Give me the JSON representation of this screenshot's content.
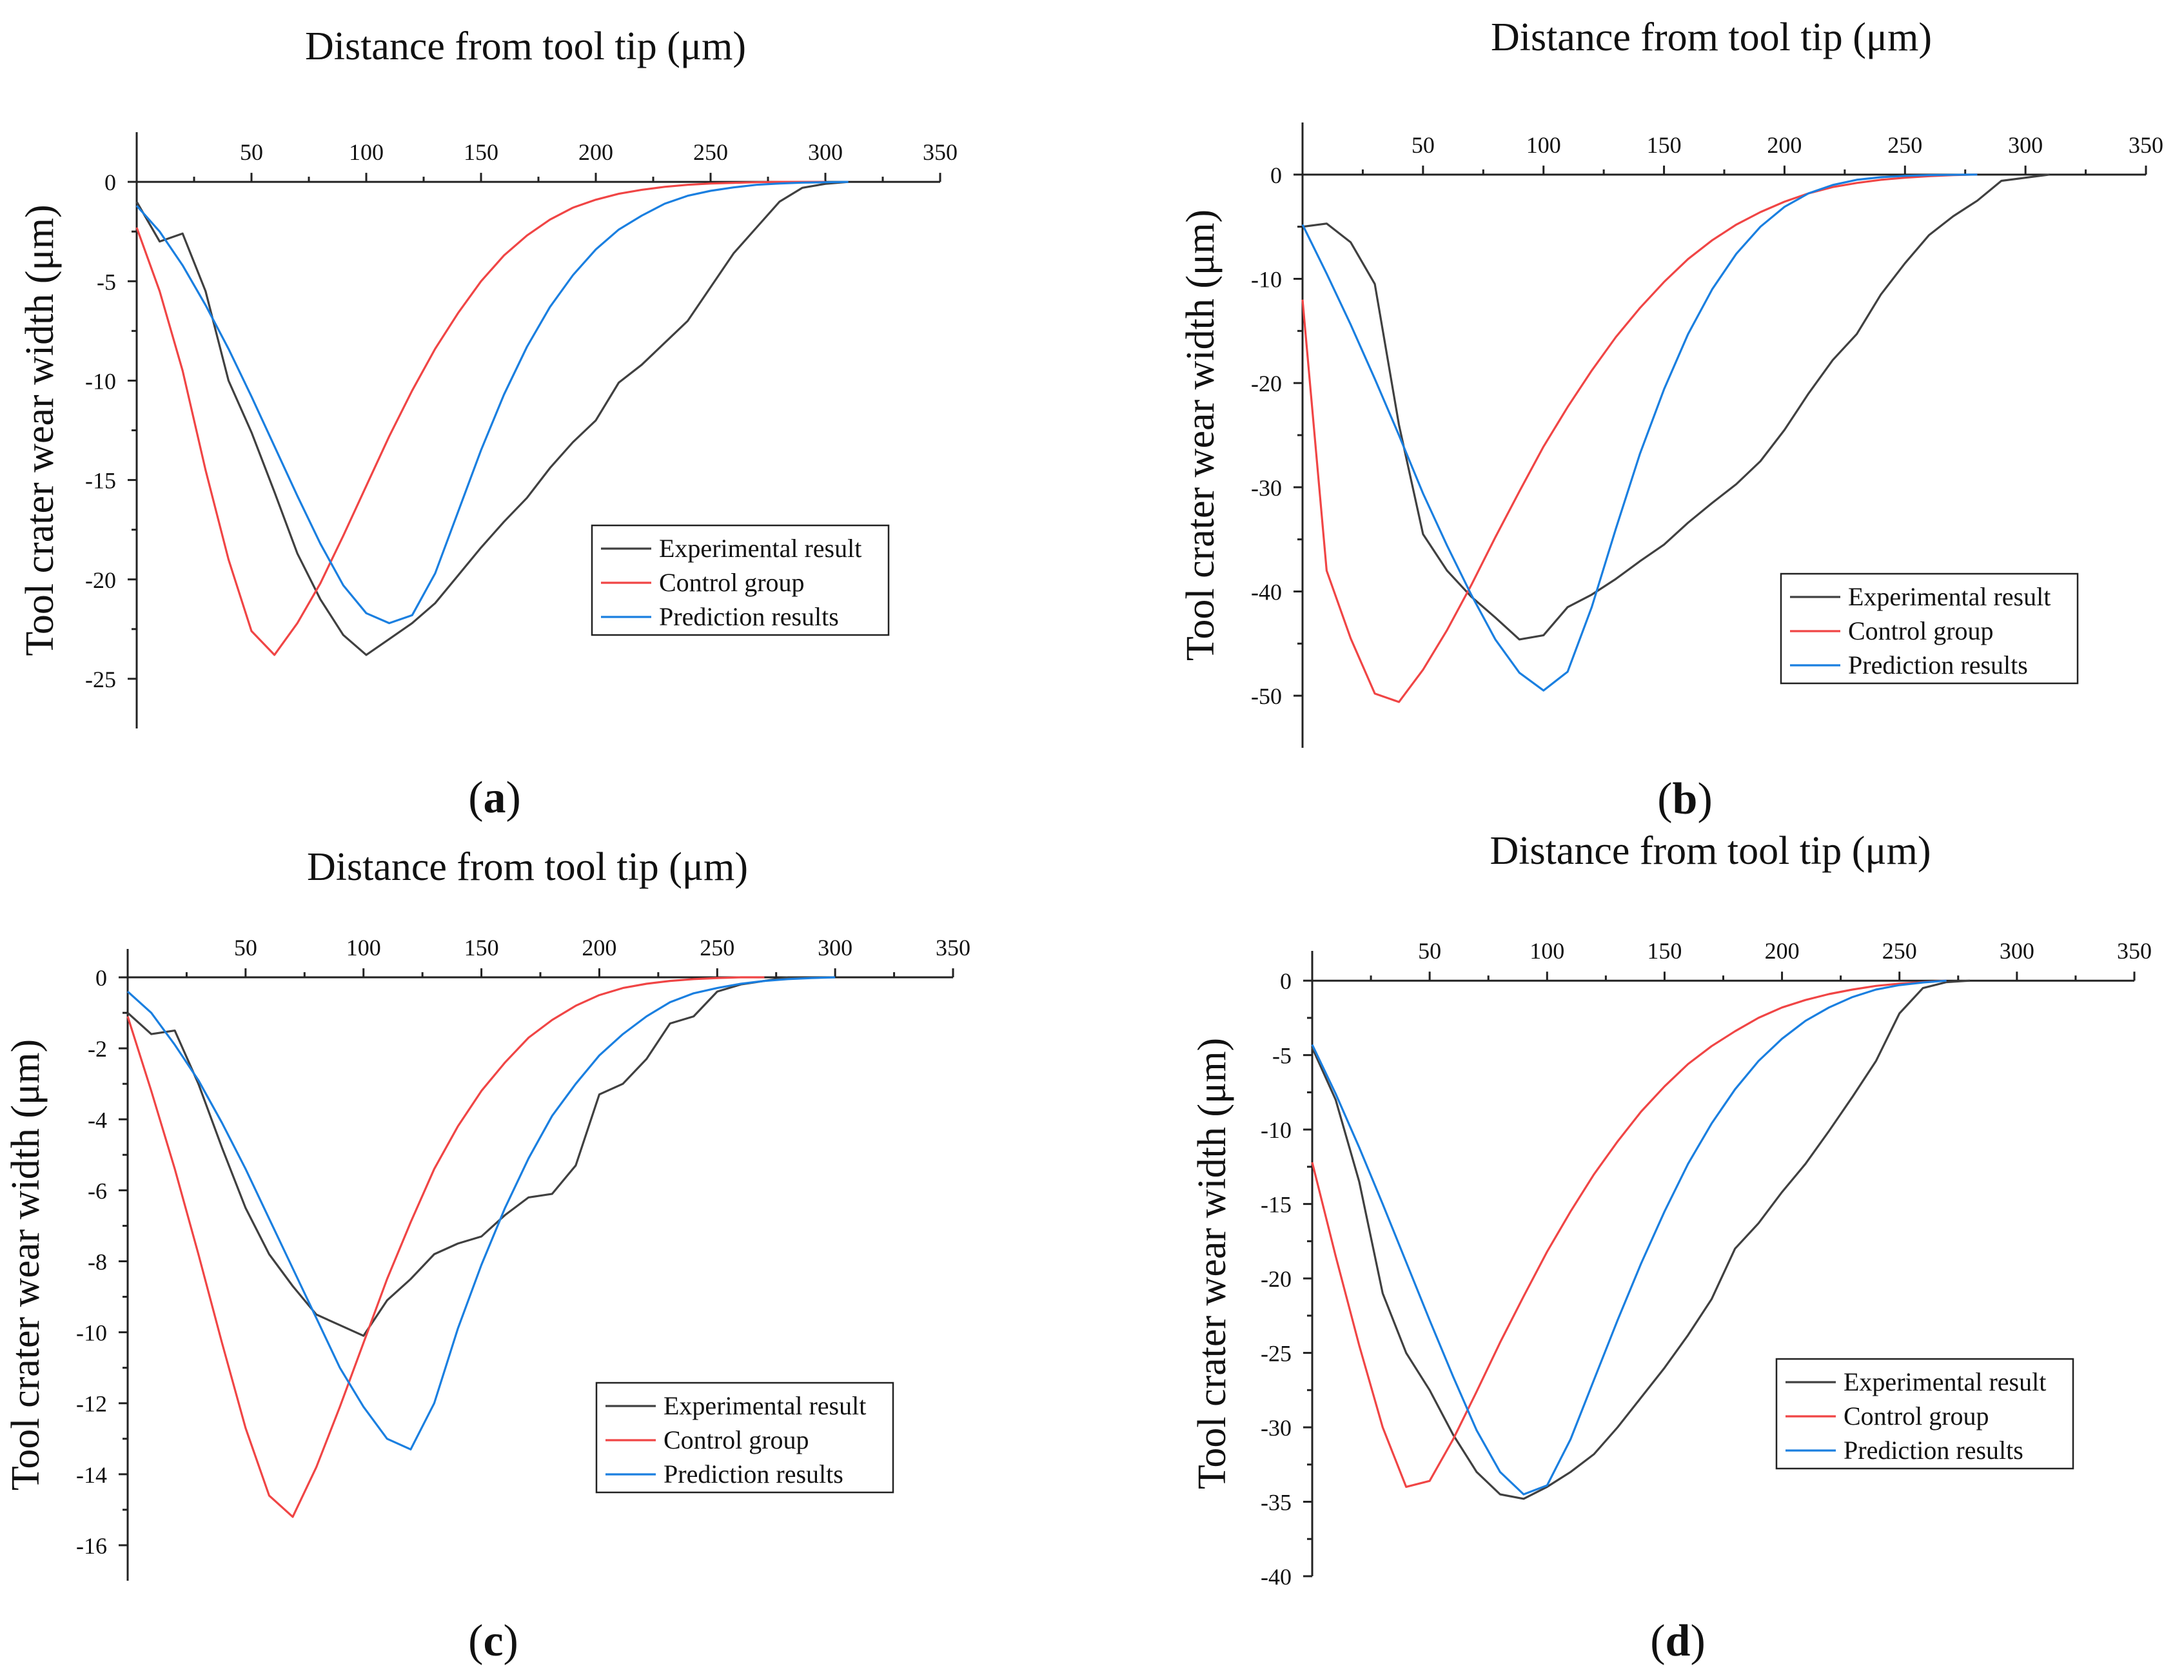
{
  "figure": {
    "colors": {
      "experimental": "#404040",
      "control": "#f04545",
      "prediction": "#1a7fe0",
      "axis": "#222222"
    },
    "legend_labels": [
      "Experimental result",
      "Control group",
      "Prediction results"
    ]
  },
  "chart_data": [
    {
      "id": "a",
      "type": "line",
      "caption_letter": "a",
      "title": "Distance from tool tip (μm)",
      "ylabel": "Tool crater wear width (μm)",
      "xlim": [
        0,
        350
      ],
      "ylim": [
        -27.5,
        2.5
      ],
      "xticks": [
        50,
        100,
        150,
        200,
        250,
        300,
        350
      ],
      "yticks": [
        0,
        -5,
        -10,
        -15,
        -20,
        -25
      ],
      "legend_position": "lower-right",
      "series": [
        {
          "name": "Experimental result",
          "x": [
            0,
            10,
            20,
            30,
            40,
            50,
            60,
            70,
            80,
            90,
            100,
            110,
            120,
            130,
            140,
            150,
            160,
            170,
            180,
            190,
            200,
            210,
            220,
            230,
            240,
            250,
            260,
            270,
            280,
            290,
            300,
            310
          ],
          "y": [
            -1,
            -3,
            -2.6,
            -5.5,
            -10,
            -12.6,
            -15.6,
            -18.7,
            -21,
            -22.8,
            -23.8,
            -23,
            -22.2,
            -21.2,
            -19.8,
            -18.4,
            -17.1,
            -15.9,
            -14.4,
            -13.1,
            -12,
            -10.1,
            -9.2,
            -8.1,
            -7,
            -5.3,
            -3.6,
            -2.3,
            -1,
            -0.3,
            -0.1,
            0
          ]
        },
        {
          "name": "Control group",
          "x": [
            0,
            10,
            20,
            30,
            40,
            50,
            60,
            70,
            80,
            90,
            100,
            110,
            120,
            130,
            140,
            150,
            160,
            170,
            180,
            190,
            200,
            210,
            220,
            230,
            240,
            250,
            260,
            270,
            280,
            290,
            300
          ],
          "y": [
            -2.3,
            -5.5,
            -9.5,
            -14.5,
            -19,
            -22.6,
            -23.8,
            -22.2,
            -20.2,
            -17.8,
            -15.3,
            -12.8,
            -10.5,
            -8.4,
            -6.6,
            -5,
            -3.7,
            -2.7,
            -1.9,
            -1.3,
            -0.9,
            -0.6,
            -0.4,
            -0.25,
            -0.15,
            -0.08,
            -0.05,
            -0.02,
            0,
            0,
            0
          ]
        },
        {
          "name": "Prediction results",
          "x": [
            0,
            10,
            20,
            30,
            40,
            50,
            60,
            70,
            80,
            90,
            100,
            110,
            120,
            130,
            140,
            150,
            160,
            170,
            180,
            190,
            200,
            210,
            220,
            230,
            240,
            250,
            260,
            270,
            280,
            290,
            300,
            310
          ],
          "y": [
            -1.2,
            -2.5,
            -4.2,
            -6.2,
            -8.4,
            -10.8,
            -13.3,
            -15.8,
            -18.2,
            -20.3,
            -21.7,
            -22.2,
            -21.8,
            -19.7,
            -16.6,
            -13.5,
            -10.7,
            -8.3,
            -6.3,
            -4.7,
            -3.4,
            -2.4,
            -1.7,
            -1.1,
            -0.7,
            -0.45,
            -0.28,
            -0.15,
            -0.08,
            -0.04,
            -0.02,
            0
          ]
        }
      ]
    },
    {
      "id": "b",
      "type": "line",
      "caption_letter": "b",
      "title": "Distance from tool tip (μm)",
      "ylabel": "Tool crater wear width (μm)",
      "xlim": [
        0,
        350
      ],
      "ylim": [
        -55,
        5
      ],
      "xticks": [
        50,
        100,
        150,
        200,
        250,
        300,
        350
      ],
      "yticks": [
        0,
        -10,
        -20,
        -30,
        -40,
        -50
      ],
      "legend_position": "lower-right",
      "series": [
        {
          "name": "Experimental result",
          "x": [
            0,
            10,
            20,
            30,
            40,
            50,
            60,
            70,
            80,
            90,
            100,
            110,
            120,
            130,
            140,
            150,
            160,
            170,
            180,
            190,
            200,
            210,
            220,
            230,
            240,
            250,
            260,
            270,
            280,
            290,
            300,
            310
          ],
          "y": [
            -5,
            -4.7,
            -6.5,
            -10.5,
            -24,
            -34.5,
            -38,
            -40.5,
            -42.5,
            -44.6,
            -44.2,
            -41.5,
            -40.3,
            -38.8,
            -37.1,
            -35.5,
            -33.4,
            -31.5,
            -29.7,
            -27.5,
            -24.5,
            -21,
            -17.8,
            -15.3,
            -11.5,
            -8.5,
            -5.8,
            -4,
            -2.5,
            -0.6,
            -0.3,
            0
          ]
        },
        {
          "name": "Control group",
          "x": [
            0,
            10,
            20,
            30,
            40,
            50,
            60,
            70,
            80,
            90,
            100,
            110,
            120,
            130,
            140,
            150,
            160,
            170,
            180,
            190,
            200,
            210,
            220,
            230,
            240,
            250,
            260,
            270,
            280
          ],
          "y": [
            -12,
            -38,
            -44.5,
            -49.8,
            -50.6,
            -47.5,
            -43.7,
            -39.4,
            -34.8,
            -30.4,
            -26.1,
            -22.3,
            -18.8,
            -15.6,
            -12.8,
            -10.3,
            -8.1,
            -6.3,
            -4.8,
            -3.6,
            -2.6,
            -1.8,
            -1.2,
            -0.8,
            -0.5,
            -0.3,
            -0.15,
            -0.05,
            0
          ]
        },
        {
          "name": "Prediction results",
          "x": [
            0,
            10,
            20,
            30,
            40,
            50,
            60,
            70,
            80,
            90,
            100,
            110,
            120,
            130,
            140,
            150,
            160,
            170,
            180,
            190,
            200,
            210,
            220,
            230,
            240,
            250,
            260,
            270,
            280
          ],
          "y": [
            -4.8,
            -9.5,
            -14.4,
            -19.6,
            -25,
            -30.6,
            -35.6,
            -40.3,
            -44.6,
            -47.8,
            -49.5,
            -47.7,
            -41.5,
            -34,
            -26.8,
            -20.6,
            -15.3,
            -11,
            -7.6,
            -5,
            -3.1,
            -1.8,
            -1,
            -0.5,
            -0.25,
            -0.12,
            -0.05,
            -0.02,
            0
          ]
        }
      ]
    },
    {
      "id": "c",
      "type": "line",
      "caption_letter": "c",
      "title": "Distance from tool tip (μm)",
      "ylabel": "Tool crater wear width (μm)",
      "xlim": [
        0,
        350
      ],
      "ylim": [
        -17,
        0.8
      ],
      "xticks": [
        50,
        100,
        150,
        200,
        250,
        300,
        350
      ],
      "yticks": [
        0,
        -2,
        -4,
        -6,
        -8,
        -10,
        -12,
        -14,
        -16
      ],
      "legend_position": "lower-right",
      "series": [
        {
          "name": "Experimental result",
          "x": [
            0,
            10,
            20,
            30,
            40,
            50,
            60,
            70,
            80,
            90,
            100,
            110,
            120,
            130,
            140,
            150,
            160,
            170,
            180,
            190,
            200,
            210,
            220,
            230,
            240,
            250,
            260,
            270,
            280,
            290,
            300
          ],
          "y": [
            -1,
            -1.6,
            -1.5,
            -3,
            -4.8,
            -6.5,
            -7.8,
            -8.7,
            -9.5,
            -9.8,
            -10.1,
            -9.1,
            -8.5,
            -7.8,
            -7.5,
            -7.3,
            -6.7,
            -6.2,
            -6.1,
            -5.3,
            -3.3,
            -3,
            -2.3,
            -1.3,
            -1.1,
            -0.4,
            -0.2,
            -0.1,
            0,
            0,
            0
          ]
        },
        {
          "name": "Control group",
          "x": [
            0,
            10,
            20,
            30,
            40,
            50,
            60,
            70,
            80,
            90,
            100,
            110,
            120,
            130,
            140,
            150,
            160,
            170,
            180,
            190,
            200,
            210,
            220,
            230,
            240,
            250,
            260,
            270
          ],
          "y": [
            -1.1,
            -3.2,
            -5.4,
            -7.8,
            -10.3,
            -12.7,
            -14.6,
            -15.2,
            -13.8,
            -12.1,
            -10.3,
            -8.5,
            -6.9,
            -5.4,
            -4.2,
            -3.2,
            -2.4,
            -1.7,
            -1.2,
            -0.8,
            -0.5,
            -0.3,
            -0.18,
            -0.1,
            -0.05,
            -0.02,
            0,
            0
          ]
        },
        {
          "name": "Prediction results",
          "x": [
            0,
            10,
            20,
            30,
            40,
            50,
            60,
            70,
            80,
            90,
            100,
            110,
            120,
            130,
            140,
            150,
            160,
            170,
            180,
            190,
            200,
            210,
            220,
            230,
            240,
            250,
            260,
            270,
            280,
            290,
            300
          ],
          "y": [
            -0.4,
            -1,
            -1.9,
            -2.9,
            -4.1,
            -5.4,
            -6.8,
            -8.2,
            -9.6,
            -11,
            -12.1,
            -13,
            -13.3,
            -12,
            -9.9,
            -8.1,
            -6.5,
            -5.1,
            -3.9,
            -3,
            -2.2,
            -1.6,
            -1.1,
            -0.7,
            -0.45,
            -0.3,
            -0.18,
            -0.1,
            -0.05,
            -0.02,
            0
          ]
        }
      ]
    },
    {
      "id": "d",
      "type": "line",
      "caption_letter": "d",
      "title": "Distance from tool tip (μm)",
      "ylabel": "Tool crater wear width (μm)",
      "xlim": [
        0,
        350
      ],
      "ylim": [
        -40,
        2
      ],
      "xticks": [
        50,
        100,
        150,
        200,
        250,
        300,
        350
      ],
      "yticks": [
        0,
        -5,
        -10,
        -15,
        -20,
        -25,
        -30,
        -35,
        -40
      ],
      "legend_position": "lower-right",
      "series": [
        {
          "name": "Experimental result",
          "x": [
            0,
            10,
            20,
            30,
            40,
            50,
            60,
            70,
            80,
            90,
            100,
            110,
            120,
            130,
            140,
            150,
            160,
            170,
            180,
            190,
            200,
            210,
            220,
            230,
            240,
            250,
            260,
            270,
            280
          ],
          "y": [
            -4.5,
            -8,
            -13.5,
            -21,
            -25,
            -27.5,
            -30.5,
            -33,
            -34.5,
            -34.8,
            -34,
            -33,
            -31.8,
            -30,
            -28,
            -26,
            -23.8,
            -21.4,
            -18,
            -16.3,
            -14.2,
            -12.3,
            -10.1,
            -7.8,
            -5.4,
            -2.2,
            -0.5,
            -0.1,
            0
          ]
        },
        {
          "name": "Control group",
          "x": [
            0,
            10,
            20,
            30,
            40,
            50,
            60,
            70,
            80,
            90,
            100,
            110,
            120,
            130,
            140,
            150,
            160,
            170,
            180,
            190,
            200,
            210,
            220,
            230,
            240,
            250,
            260,
            270
          ],
          "y": [
            -12.2,
            -18.5,
            -24.5,
            -30,
            -34,
            -33.6,
            -30.8,
            -27.6,
            -24.3,
            -21.2,
            -18.2,
            -15.5,
            -13,
            -10.8,
            -8.8,
            -7.1,
            -5.6,
            -4.4,
            -3.4,
            -2.5,
            -1.8,
            -1.3,
            -0.9,
            -0.6,
            -0.35,
            -0.2,
            -0.1,
            0
          ]
        },
        {
          "name": "Prediction results",
          "x": [
            0,
            10,
            20,
            30,
            40,
            50,
            60,
            70,
            80,
            90,
            100,
            110,
            120,
            130,
            140,
            150,
            160,
            170,
            180,
            190,
            200,
            210,
            220,
            230,
            240,
            250,
            260,
            270
          ],
          "y": [
            -4.3,
            -7.6,
            -11.2,
            -15,
            -18.9,
            -22.8,
            -26.6,
            -30.2,
            -33,
            -34.5,
            -33.9,
            -30.8,
            -26.8,
            -22.8,
            -19,
            -15.5,
            -12.3,
            -9.6,
            -7.3,
            -5.4,
            -3.9,
            -2.7,
            -1.8,
            -1.1,
            -0.6,
            -0.3,
            -0.12,
            0
          ]
        }
      ]
    }
  ]
}
